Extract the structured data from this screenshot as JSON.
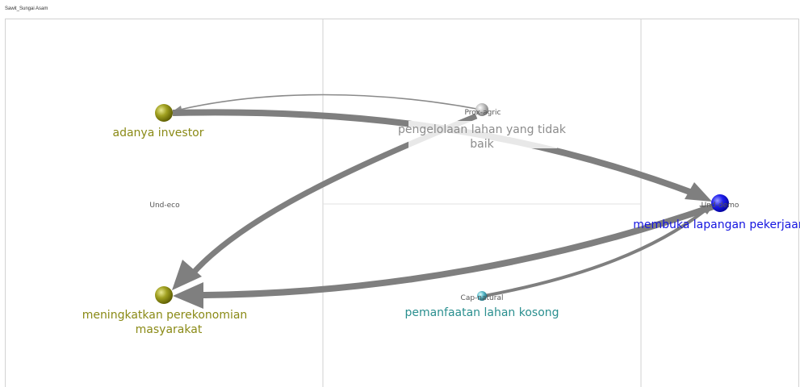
{
  "title": "Sawit_Sungai Asam",
  "colors": {
    "grid": "#d2d2d2",
    "arrow": "#7f7f7f",
    "olive": "#8a8a16",
    "blue": "#1414e0",
    "teal": "#2a8f8f",
    "grey_label": "#8c8c8c"
  },
  "quadrant_labels": {
    "und_eco": "Und-eco"
  },
  "nodes": [
    {
      "id": "investor",
      "label": "adanya investor",
      "code": "",
      "color_key": "olive"
    },
    {
      "id": "ekonomi",
      "label_line1": "meningkatkan perekonomian",
      "label_line2": "masyarakat",
      "code": "",
      "color_key": "olive"
    },
    {
      "id": "pengelolaan",
      "label_line1": "pengelolaan lahan yang tidak",
      "label_line2": "baik",
      "code": "Prox-agric",
      "color_key": "grey_label"
    },
    {
      "id": "lapangan",
      "label": "membuka lapangan pekerjaan",
      "code": "Und-demo",
      "color_key": "blue"
    },
    {
      "id": "kosong",
      "label": "pemanfaatan lahan kosong",
      "code": "Cap-natural",
      "color_key": "teal"
    }
  ],
  "edges": [
    {
      "from": "investor",
      "to": "lapangan",
      "weight": "thick"
    },
    {
      "from": "pengelolaan",
      "to": "investor",
      "weight": "thin"
    },
    {
      "from": "pengelolaan",
      "to": "ekonomi",
      "weight": "thick"
    },
    {
      "from": "lapangan",
      "to": "ekonomi",
      "weight": "thick"
    },
    {
      "from": "kosong",
      "to": "lapangan",
      "weight": "medium"
    }
  ]
}
